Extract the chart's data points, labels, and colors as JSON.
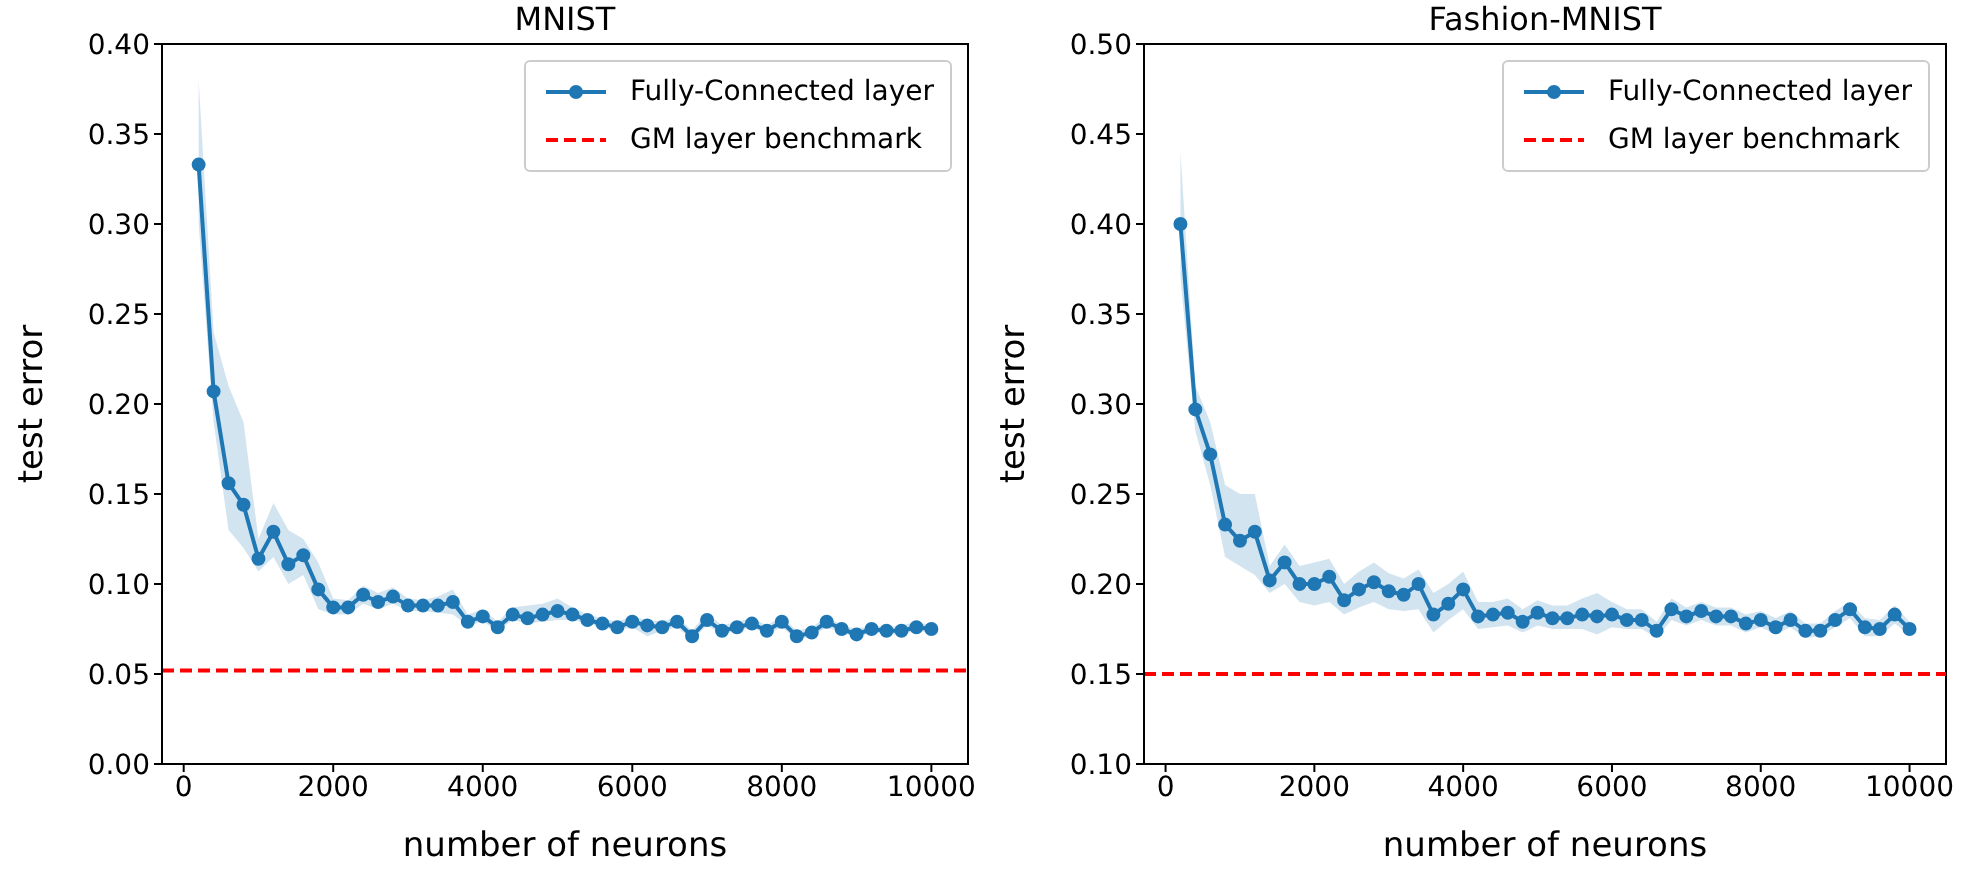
{
  "chart_data": [
    {
      "type": "line",
      "title": "MNIST",
      "xlabel": "number of neurons",
      "ylabel": "test error",
      "legend": "top right",
      "marker": "circle",
      "grid": false,
      "x": [
        200,
        400,
        600,
        800,
        1000,
        1200,
        1400,
        1600,
        1800,
        2000,
        2200,
        2400,
        2600,
        2800,
        3000,
        3200,
        3400,
        3600,
        3800,
        4000,
        4200,
        4400,
        4600,
        4800,
        5000,
        5200,
        5400,
        5600,
        5800,
        6000,
        6200,
        6400,
        6600,
        6800,
        7000,
        7200,
        7400,
        7600,
        7800,
        8000,
        8200,
        8400,
        8600,
        8800,
        9000,
        9200,
        9400,
        9600,
        9800,
        10000
      ],
      "series": [
        {
          "name": "Fully-Connected layer",
          "color": "#1f77b4",
          "values": [
            0.333,
            0.207,
            0.156,
            0.144,
            0.114,
            0.129,
            0.111,
            0.116,
            0.097,
            0.087,
            0.087,
            0.094,
            0.09,
            0.093,
            0.088,
            0.088,
            0.088,
            0.09,
            0.079,
            0.082,
            0.076,
            0.083,
            0.081,
            0.083,
            0.085,
            0.083,
            0.08,
            0.078,
            0.076,
            0.079,
            0.077,
            0.076,
            0.079,
            0.071,
            0.08,
            0.074,
            0.076,
            0.078,
            0.074,
            0.079,
            0.071,
            0.073,
            0.079,
            0.075,
            0.072,
            0.075,
            0.074,
            0.074,
            0.076,
            0.075
          ],
          "lower": [
            0.3,
            0.19,
            0.13,
            0.12,
            0.107,
            0.115,
            0.1,
            0.105,
            0.086,
            0.083,
            0.083,
            0.089,
            0.086,
            0.089,
            0.085,
            0.085,
            0.084,
            0.083,
            0.077,
            0.079,
            0.074,
            0.08,
            0.078,
            0.079,
            0.08,
            0.08,
            0.078,
            0.076,
            0.074,
            0.076,
            0.071,
            0.074,
            0.076,
            0.069,
            0.077,
            0.072,
            0.074,
            0.076,
            0.072,
            0.076,
            0.069,
            0.071,
            0.076,
            0.073,
            0.07,
            0.073,
            0.072,
            0.072,
            0.074,
            0.073
          ],
          "upper": [
            0.38,
            0.24,
            0.21,
            0.19,
            0.125,
            0.145,
            0.13,
            0.125,
            0.112,
            0.092,
            0.091,
            0.099,
            0.095,
            0.098,
            0.092,
            0.091,
            0.093,
            0.097,
            0.083,
            0.086,
            0.079,
            0.087,
            0.088,
            0.089,
            0.092,
            0.087,
            0.083,
            0.081,
            0.079,
            0.082,
            0.08,
            0.079,
            0.082,
            0.074,
            0.084,
            0.077,
            0.079,
            0.081,
            0.077,
            0.082,
            0.074,
            0.076,
            0.082,
            0.077,
            0.075,
            0.077,
            0.076,
            0.077,
            0.079,
            0.077
          ]
        }
      ],
      "ref_lines": [
        {
          "axis": "y",
          "value": 0.052,
          "label": "GM layer benchmark",
          "color": "#ff0000",
          "line_style": "dashed"
        }
      ],
      "xlim": [
        -290,
        10490
      ],
      "xticks": [
        0,
        2000,
        4000,
        6000,
        8000,
        10000
      ],
      "ylim": [
        0,
        0.4
      ],
      "yticks": [
        {
          "value": 0,
          "label": "0.00"
        },
        {
          "value": 0.05,
          "label": "0.05"
        },
        {
          "value": 0.1,
          "label": "0.10"
        },
        {
          "value": 0.15,
          "label": "0.15"
        },
        {
          "value": 0.2,
          "label": "0.20"
        },
        {
          "value": 0.25,
          "label": "0.25"
        },
        {
          "value": 0.3,
          "label": "0.30"
        },
        {
          "value": 0.35,
          "label": "0.35"
        },
        {
          "value": 0.4,
          "label": "0.40"
        }
      ]
    },
    {
      "type": "line",
      "title": "Fashion-MNIST",
      "xlabel": "number of neurons",
      "ylabel": "test error",
      "legend": "top right",
      "marker": "circle",
      "grid": false,
      "x": [
        200,
        400,
        600,
        800,
        1000,
        1200,
        1400,
        1600,
        1800,
        2000,
        2200,
        2400,
        2600,
        2800,
        3000,
        3200,
        3400,
        3600,
        3800,
        4000,
        4200,
        4400,
        4600,
        4800,
        5000,
        5200,
        5400,
        5600,
        5800,
        6000,
        6200,
        6400,
        6600,
        6800,
        7000,
        7200,
        7400,
        7600,
        7800,
        8000,
        8200,
        8400,
        8600,
        8800,
        9000,
        9200,
        9400,
        9600,
        9800,
        10000
      ],
      "series": [
        {
          "name": "Fully-Connected layer",
          "color": "#1f77b4",
          "values": [
            0.4,
            0.297,
            0.272,
            0.233,
            0.224,
            0.229,
            0.202,
            0.212,
            0.2,
            0.2,
            0.204,
            0.191,
            0.197,
            0.201,
            0.196,
            0.194,
            0.2,
            0.183,
            0.189,
            0.197,
            0.182,
            0.183,
            0.184,
            0.179,
            0.184,
            0.181,
            0.181,
            0.183,
            0.182,
            0.183,
            0.18,
            0.18,
            0.174,
            0.186,
            0.182,
            0.185,
            0.182,
            0.182,
            0.178,
            0.18,
            0.176,
            0.18,
            0.174,
            0.174,
            0.18,
            0.186,
            0.176,
            0.175,
            0.183,
            0.175
          ],
          "lower": [
            0.37,
            0.285,
            0.255,
            0.215,
            0.21,
            0.205,
            0.195,
            0.2,
            0.19,
            0.188,
            0.19,
            0.183,
            0.187,
            0.19,
            0.186,
            0.185,
            0.186,
            0.173,
            0.18,
            0.186,
            0.175,
            0.176,
            0.177,
            0.173,
            0.177,
            0.175,
            0.175,
            0.175,
            0.172,
            0.176,
            0.175,
            0.175,
            0.17,
            0.18,
            0.177,
            0.18,
            0.177,
            0.177,
            0.173,
            0.176,
            0.172,
            0.176,
            0.17,
            0.171,
            0.176,
            0.181,
            0.171,
            0.171,
            0.178,
            0.172
          ],
          "upper": [
            0.44,
            0.31,
            0.29,
            0.255,
            0.25,
            0.25,
            0.21,
            0.222,
            0.21,
            0.212,
            0.214,
            0.2,
            0.207,
            0.212,
            0.206,
            0.203,
            0.208,
            0.195,
            0.2,
            0.207,
            0.19,
            0.19,
            0.192,
            0.186,
            0.191,
            0.188,
            0.188,
            0.192,
            0.195,
            0.19,
            0.186,
            0.186,
            0.179,
            0.192,
            0.187,
            0.19,
            0.187,
            0.187,
            0.183,
            0.185,
            0.181,
            0.185,
            0.178,
            0.178,
            0.185,
            0.19,
            0.181,
            0.18,
            0.188,
            0.179
          ]
        }
      ],
      "ref_lines": [
        {
          "axis": "y",
          "value": 0.15,
          "label": "GM layer benchmark",
          "color": "#ff0000",
          "line_style": "dashed"
        }
      ],
      "xlim": [
        -290,
        10490
      ],
      "xticks": [
        0,
        2000,
        4000,
        6000,
        8000,
        10000
      ],
      "ylim": [
        0.1,
        0.5
      ],
      "yticks": [
        {
          "value": 0.1,
          "label": "0.10"
        },
        {
          "value": 0.15,
          "label": "0.15"
        },
        {
          "value": 0.2,
          "label": "0.20"
        },
        {
          "value": 0.25,
          "label": "0.25"
        },
        {
          "value": 0.3,
          "label": "0.30"
        },
        {
          "value": 0.35,
          "label": "0.35"
        },
        {
          "value": 0.4,
          "label": "0.40"
        },
        {
          "value": 0.45,
          "label": "0.45"
        },
        {
          "value": 0.5,
          "label": "0.50"
        }
      ]
    }
  ]
}
